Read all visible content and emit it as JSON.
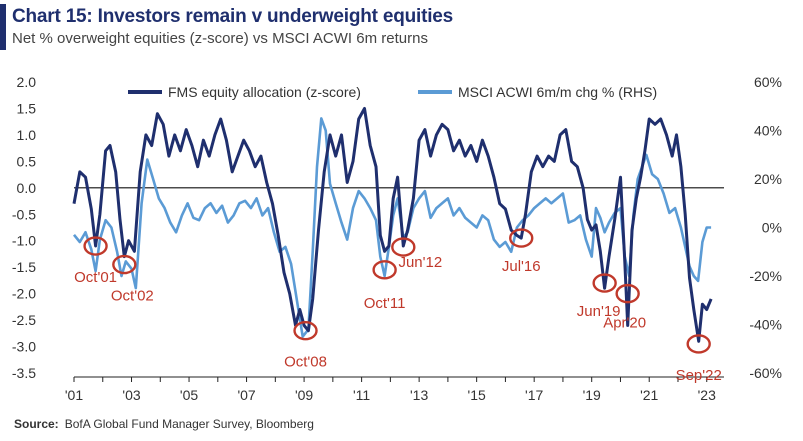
{
  "header": {
    "title": "Chart 15: Investors remain v underweight equities",
    "subtitle": "Net % overweight equities (z-score) vs MSCI ACWI 6m returns",
    "accent_color": "#1f2f6e"
  },
  "source": {
    "label": "Source:",
    "text": "BofA Global Fund Manager Survey, Bloomberg"
  },
  "chart_data": {
    "type": "line",
    "title": "Chart 15: Investors remain v underweight equities",
    "subtitle": "Net % overweight equities (z-score) vs MSCI ACWI 6m returns",
    "x_tick_labels": [
      "'01",
      "'03",
      "'05",
      "'07",
      "'09",
      "'11",
      "'13",
      "'15",
      "'17",
      "'19",
      "'21",
      "'23"
    ],
    "x_tick_years": [
      2001,
      2003,
      2005,
      2007,
      2009,
      2011,
      2013,
      2015,
      2017,
      2019,
      2021,
      2023
    ],
    "xlim": [
      2001,
      2023.6
    ],
    "y_left": {
      "ticks": [
        "2.0",
        "1.5",
        "1.0",
        "0.5",
        "0.0",
        "-0.5",
        "-1.0",
        "-1.5",
        "-2.0",
        "-2.5",
        "-3.0",
        "-3.5"
      ],
      "lim": [
        -3.5,
        2.0
      ]
    },
    "y_right": {
      "ticks": [
        "60%",
        "40%",
        "20%",
        "0%",
        "-20%",
        "-40%",
        "-60%"
      ],
      "lim": [
        -60,
        60
      ]
    },
    "zero_line": true,
    "legend_position": "top",
    "series": [
      {
        "name": "FMS equity allocation (z-score)",
        "axis": "left",
        "color": "#1f2f6e",
        "points": [
          [
            2001.0,
            -0.3
          ],
          [
            2001.2,
            0.3
          ],
          [
            2001.4,
            0.2
          ],
          [
            2001.6,
            -0.4
          ],
          [
            2001.75,
            -1.1
          ],
          [
            2001.9,
            -0.5
          ],
          [
            2002.1,
            0.7
          ],
          [
            2002.25,
            0.8
          ],
          [
            2002.45,
            0.3
          ],
          [
            2002.6,
            -0.6
          ],
          [
            2002.75,
            -1.3
          ],
          [
            2002.9,
            -1.0
          ],
          [
            2003.1,
            -1.2
          ],
          [
            2003.3,
            0.3
          ],
          [
            2003.5,
            1.0
          ],
          [
            2003.7,
            0.8
          ],
          [
            2003.9,
            1.4
          ],
          [
            2004.1,
            1.2
          ],
          [
            2004.3,
            0.6
          ],
          [
            2004.5,
            1.0
          ],
          [
            2004.7,
            0.7
          ],
          [
            2004.9,
            1.1
          ],
          [
            2005.1,
            0.8
          ],
          [
            2005.3,
            0.4
          ],
          [
            2005.5,
            0.9
          ],
          [
            2005.7,
            0.6
          ],
          [
            2005.9,
            1.0
          ],
          [
            2006.1,
            1.3
          ],
          [
            2006.3,
            0.9
          ],
          [
            2006.5,
            0.3
          ],
          [
            2006.7,
            0.6
          ],
          [
            2006.9,
            0.9
          ],
          [
            2007.1,
            0.7
          ],
          [
            2007.3,
            0.4
          ],
          [
            2007.5,
            0.6
          ],
          [
            2007.7,
            0.1
          ],
          [
            2007.9,
            -0.3
          ],
          [
            2008.1,
            -0.9
          ],
          [
            2008.3,
            -1.6
          ],
          [
            2008.5,
            -2.0
          ],
          [
            2008.7,
            -2.6
          ],
          [
            2008.85,
            -2.3
          ],
          [
            2009.0,
            -2.6
          ],
          [
            2009.15,
            -2.7
          ],
          [
            2009.3,
            -2.1
          ],
          [
            2009.5,
            -0.8
          ],
          [
            2009.7,
            0.3
          ],
          [
            2009.9,
            1.0
          ],
          [
            2010.1,
            0.6
          ],
          [
            2010.3,
            1.0
          ],
          [
            2010.5,
            0.1
          ],
          [
            2010.7,
            0.5
          ],
          [
            2010.9,
            1.3
          ],
          [
            2011.1,
            1.5
          ],
          [
            2011.3,
            0.8
          ],
          [
            2011.5,
            0.4
          ],
          [
            2011.65,
            -0.9
          ],
          [
            2011.8,
            -1.2
          ],
          [
            2011.95,
            -1.1
          ],
          [
            2012.1,
            -0.2
          ],
          [
            2012.25,
            0.2
          ],
          [
            2012.45,
            -1.1
          ],
          [
            2012.6,
            -0.8
          ],
          [
            2012.8,
            -0.2
          ],
          [
            2013.0,
            0.9
          ],
          [
            2013.2,
            1.1
          ],
          [
            2013.4,
            0.6
          ],
          [
            2013.6,
            1.0
          ],
          [
            2013.8,
            1.2
          ],
          [
            2014.0,
            1.1
          ],
          [
            2014.2,
            0.7
          ],
          [
            2014.4,
            0.9
          ],
          [
            2014.6,
            0.6
          ],
          [
            2014.8,
            0.8
          ],
          [
            2015.0,
            0.5
          ],
          [
            2015.2,
            0.9
          ],
          [
            2015.4,
            0.6
          ],
          [
            2015.6,
            0.2
          ],
          [
            2015.8,
            -0.3
          ],
          [
            2016.0,
            -0.4
          ],
          [
            2016.2,
            -0.8
          ],
          [
            2016.4,
            -0.9
          ],
          [
            2016.55,
            -0.95
          ],
          [
            2016.7,
            -0.5
          ],
          [
            2016.9,
            0.3
          ],
          [
            2017.1,
            0.6
          ],
          [
            2017.3,
            0.4
          ],
          [
            2017.5,
            0.6
          ],
          [
            2017.7,
            0.5
          ],
          [
            2017.9,
            1.0
          ],
          [
            2018.1,
            1.1
          ],
          [
            2018.3,
            0.5
          ],
          [
            2018.5,
            0.4
          ],
          [
            2018.7,
            0.0
          ],
          [
            2018.85,
            -0.6
          ],
          [
            2019.0,
            -0.8
          ],
          [
            2019.15,
            -0.7
          ],
          [
            2019.3,
            -1.2
          ],
          [
            2019.45,
            -1.9
          ],
          [
            2019.6,
            -1.3
          ],
          [
            2019.8,
            -0.6
          ],
          [
            2020.0,
            0.2
          ],
          [
            2020.15,
            -1.4
          ],
          [
            2020.25,
            -2.6
          ],
          [
            2020.4,
            -0.8
          ],
          [
            2020.55,
            -0.2
          ],
          [
            2020.7,
            0.2
          ],
          [
            2020.85,
            0.7
          ],
          [
            2021.0,
            1.3
          ],
          [
            2021.2,
            1.2
          ],
          [
            2021.4,
            1.3
          ],
          [
            2021.6,
            1.0
          ],
          [
            2021.8,
            0.6
          ],
          [
            2021.95,
            1.0
          ],
          [
            2022.1,
            0.4
          ],
          [
            2022.25,
            -0.5
          ],
          [
            2022.4,
            -1.7
          ],
          [
            2022.55,
            -2.3
          ],
          [
            2022.72,
            -2.9
          ],
          [
            2022.85,
            -2.2
          ],
          [
            2023.0,
            -2.3
          ],
          [
            2023.15,
            -2.1
          ]
        ]
      },
      {
        "name": "MSCI ACWI 6m/m chg % (RHS)",
        "axis": "right",
        "color": "#5b9bd5",
        "points": [
          [
            2001.0,
            -3
          ],
          [
            2001.2,
            -6
          ],
          [
            2001.4,
            -2
          ],
          [
            2001.6,
            -9
          ],
          [
            2001.75,
            -18
          ],
          [
            2001.9,
            -5
          ],
          [
            2002.1,
            3
          ],
          [
            2002.3,
            0
          ],
          [
            2002.5,
            -10
          ],
          [
            2002.65,
            -20
          ],
          [
            2002.8,
            -14
          ],
          [
            2003.0,
            -17
          ],
          [
            2003.15,
            -25
          ],
          [
            2003.35,
            10
          ],
          [
            2003.55,
            28
          ],
          [
            2003.75,
            20
          ],
          [
            2003.95,
            12
          ],
          [
            2004.15,
            8
          ],
          [
            2004.35,
            2
          ],
          [
            2004.55,
            -2
          ],
          [
            2004.75,
            5
          ],
          [
            2004.95,
            10
          ],
          [
            2005.15,
            4
          ],
          [
            2005.35,
            3
          ],
          [
            2005.55,
            8
          ],
          [
            2005.75,
            10
          ],
          [
            2005.95,
            6
          ],
          [
            2006.15,
            9
          ],
          [
            2006.35,
            2
          ],
          [
            2006.55,
            5
          ],
          [
            2006.75,
            10
          ],
          [
            2006.95,
            11
          ],
          [
            2007.15,
            8
          ],
          [
            2007.35,
            12
          ],
          [
            2007.55,
            5
          ],
          [
            2007.75,
            8
          ],
          [
            2007.95,
            -2
          ],
          [
            2008.15,
            -10
          ],
          [
            2008.35,
            -8
          ],
          [
            2008.55,
            -15
          ],
          [
            2008.75,
            -30
          ],
          [
            2008.95,
            -45
          ],
          [
            2009.15,
            -42
          ],
          [
            2009.3,
            -10
          ],
          [
            2009.45,
            25
          ],
          [
            2009.6,
            45
          ],
          [
            2009.75,
            40
          ],
          [
            2009.9,
            18
          ],
          [
            2010.1,
            10
          ],
          [
            2010.3,
            2
          ],
          [
            2010.5,
            -5
          ],
          [
            2010.7,
            8
          ],
          [
            2010.9,
            15
          ],
          [
            2011.1,
            12
          ],
          [
            2011.3,
            8
          ],
          [
            2011.5,
            3
          ],
          [
            2011.65,
            -12
          ],
          [
            2011.8,
            -20
          ],
          [
            2011.95,
            -8
          ],
          [
            2012.1,
            5
          ],
          [
            2012.25,
            12
          ],
          [
            2012.45,
            -4
          ],
          [
            2012.6,
            -2
          ],
          [
            2012.8,
            8
          ],
          [
            2013.0,
            12
          ],
          [
            2013.2,
            15
          ],
          [
            2013.4,
            4
          ],
          [
            2013.6,
            8
          ],
          [
            2013.8,
            10
          ],
          [
            2014.0,
            12
          ],
          [
            2014.2,
            5
          ],
          [
            2014.4,
            8
          ],
          [
            2014.6,
            4
          ],
          [
            2014.8,
            2
          ],
          [
            2015.0,
            0
          ],
          [
            2015.2,
            5
          ],
          [
            2015.4,
            3
          ],
          [
            2015.6,
            -5
          ],
          [
            2015.8,
            -8
          ],
          [
            2016.0,
            -6
          ],
          [
            2016.2,
            -10
          ],
          [
            2016.4,
            0
          ],
          [
            2016.6,
            3
          ],
          [
            2016.8,
            5
          ],
          [
            2017.0,
            8
          ],
          [
            2017.2,
            10
          ],
          [
            2017.4,
            12
          ],
          [
            2017.6,
            10
          ],
          [
            2017.8,
            12
          ],
          [
            2018.0,
            14
          ],
          [
            2018.2,
            2
          ],
          [
            2018.4,
            3
          ],
          [
            2018.6,
            5
          ],
          [
            2018.8,
            -5
          ],
          [
            2019.0,
            -12
          ],
          [
            2019.15,
            8
          ],
          [
            2019.3,
            4
          ],
          [
            2019.45,
            -2
          ],
          [
            2019.6,
            2
          ],
          [
            2019.8,
            6
          ],
          [
            2020.0,
            8
          ],
          [
            2020.15,
            -12
          ],
          [
            2020.3,
            -20
          ],
          [
            2020.45,
            5
          ],
          [
            2020.6,
            20
          ],
          [
            2020.75,
            25
          ],
          [
            2020.9,
            30
          ],
          [
            2021.1,
            22
          ],
          [
            2021.3,
            20
          ],
          [
            2021.5,
            14
          ],
          [
            2021.7,
            6
          ],
          [
            2021.9,
            8
          ],
          [
            2022.1,
            0
          ],
          [
            2022.25,
            -8
          ],
          [
            2022.4,
            -16
          ],
          [
            2022.55,
            -20
          ],
          [
            2022.7,
            -22
          ],
          [
            2022.85,
            -6
          ],
          [
            2023.0,
            0
          ],
          [
            2023.15,
            0
          ]
        ]
      }
    ],
    "annotations": [
      {
        "label": "Oct'01",
        "x": 2001.75,
        "y": -1.1
      },
      {
        "label": "Oct'02",
        "x": 2002.75,
        "y": -1.45
      },
      {
        "label": "Oct'08",
        "x": 2009.05,
        "y": -2.7
      },
      {
        "label": "Oct'11",
        "x": 2011.8,
        "y": -1.55
      },
      {
        "label": "Jun'12",
        "x": 2012.45,
        "y": -1.12
      },
      {
        "label": "Jul'16",
        "x": 2016.55,
        "y": -0.95
      },
      {
        "label": "Jun'19",
        "x": 2019.45,
        "y": -1.8
      },
      {
        "label": "Apr'20",
        "x": 2020.25,
        "y": -2.0
      },
      {
        "label": "Sep'22",
        "x": 2022.72,
        "y": -2.95
      }
    ],
    "annotation_color": "#c0392b"
  }
}
